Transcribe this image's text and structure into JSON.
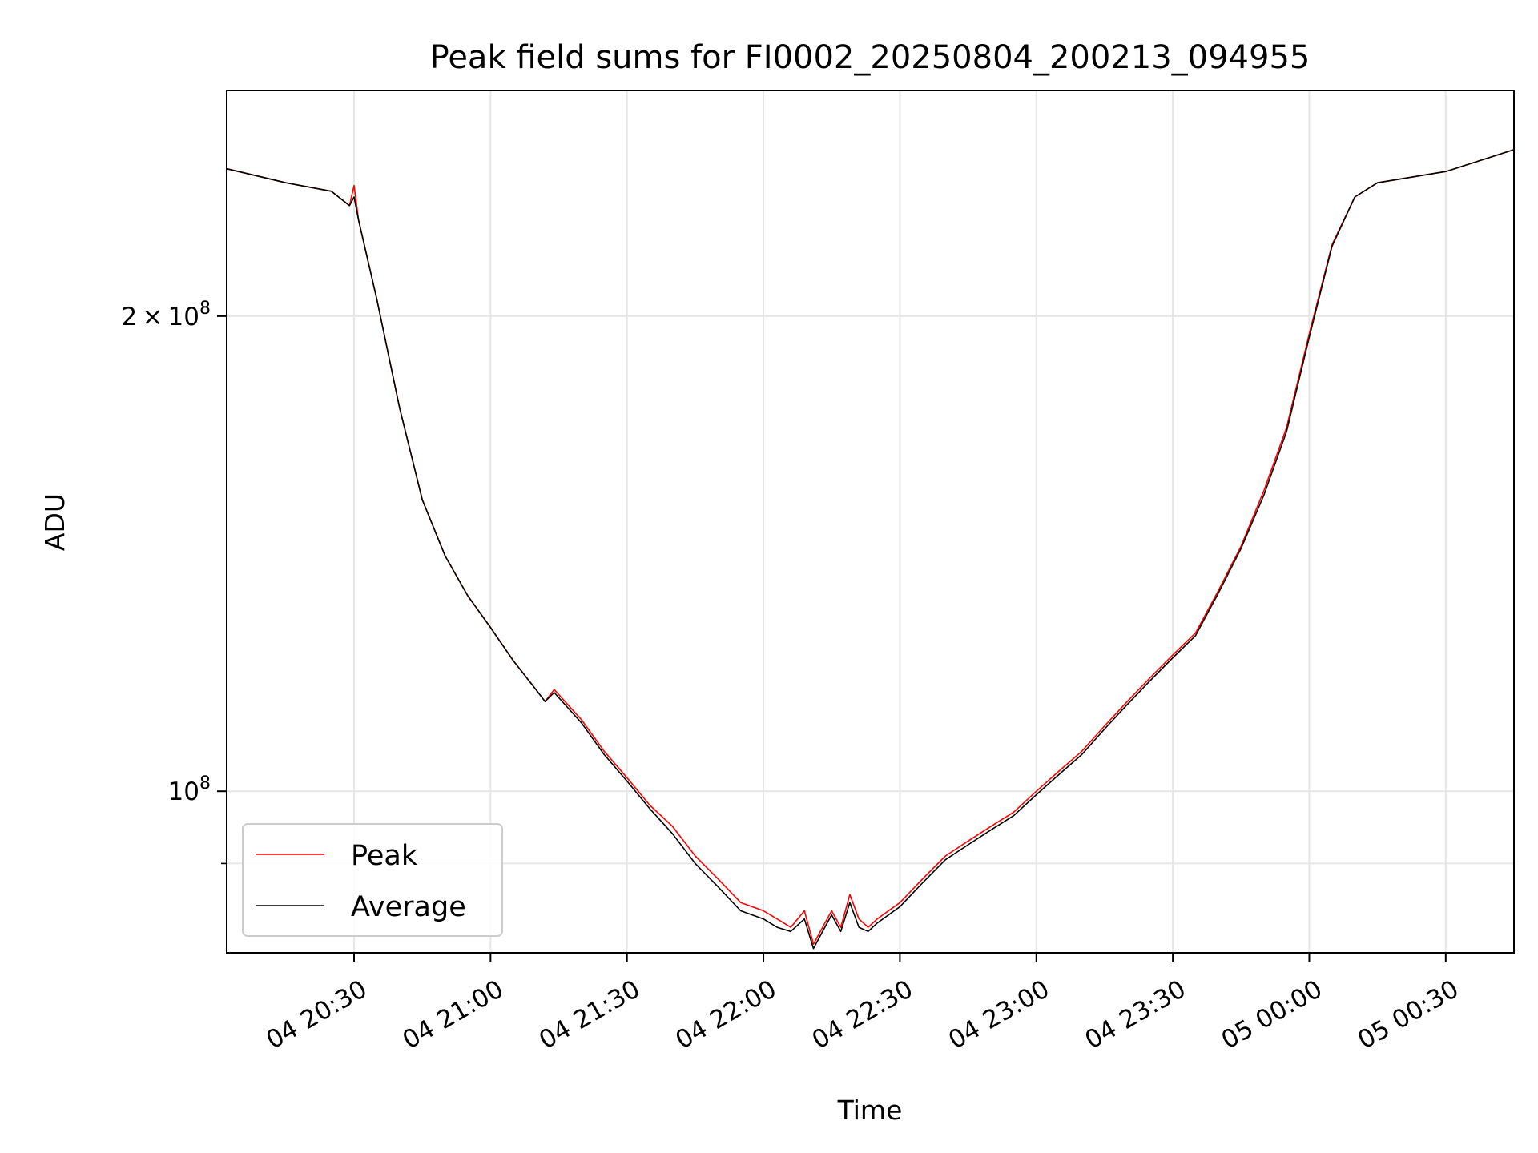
{
  "chart_data": {
    "type": "line",
    "title": "Peak field sums for FI0002_20250804_200213_094955",
    "xlabel": "Time",
    "ylabel": "ADU",
    "yscale": "log",
    "grid": true,
    "legend_placement": "lower-left",
    "xlim": [
      "2025-08-04 20:02",
      "2025-08-05 00:45"
    ],
    "ylim": [
      79000000,
      278000000
    ],
    "x_ticks": [
      "04 20:30",
      "04 21:00",
      "04 21:30",
      "04 22:00",
      "04 22:30",
      "04 23:00",
      "04 23:30",
      "05 00:00",
      "05 00:30"
    ],
    "y_ticks": [
      {
        "value": 200000000,
        "label": "2×10^8",
        "mantissa": "2 × 10",
        "exponent": "8"
      },
      {
        "value": 100000000,
        "label": "10^8",
        "mantissa": "10",
        "exponent": "8"
      }
    ],
    "y_minor_ticks": [
      90000000
    ],
    "series": [
      {
        "name": "Peak",
        "color": "#ff0000",
        "x": [
          "2025-08-04 20:02",
          "2025-08-04 20:15",
          "2025-08-04 20:25",
          "2025-08-04 20:29",
          "2025-08-04 20:30",
          "2025-08-04 20:31",
          "2025-08-04 20:35",
          "2025-08-04 20:40",
          "2025-08-04 20:45",
          "2025-08-04 20:50",
          "2025-08-04 20:55",
          "2025-08-04 21:00",
          "2025-08-04 21:05",
          "2025-08-04 21:10",
          "2025-08-04 21:12",
          "2025-08-04 21:14",
          "2025-08-04 21:20",
          "2025-08-04 21:25",
          "2025-08-04 21:30",
          "2025-08-04 21:35",
          "2025-08-04 21:40",
          "2025-08-04 21:45",
          "2025-08-04 21:50",
          "2025-08-04 21:55",
          "2025-08-04 22:00",
          "2025-08-04 22:03",
          "2025-08-04 22:06",
          "2025-08-04 22:09",
          "2025-08-04 22:11",
          "2025-08-04 22:13",
          "2025-08-04 22:15",
          "2025-08-04 22:17",
          "2025-08-04 22:19",
          "2025-08-04 22:21",
          "2025-08-04 22:23",
          "2025-08-04 22:25",
          "2025-08-04 22:30",
          "2025-08-04 22:35",
          "2025-08-04 22:40",
          "2025-08-04 22:45",
          "2025-08-04 22:50",
          "2025-08-04 22:55",
          "2025-08-04 23:00",
          "2025-08-04 23:05",
          "2025-08-04 23:10",
          "2025-08-04 23:15",
          "2025-08-04 23:20",
          "2025-08-04 23:25",
          "2025-08-04 23:30",
          "2025-08-04 23:35",
          "2025-08-04 23:40",
          "2025-08-04 23:45",
          "2025-08-04 23:50",
          "2025-08-04 23:55",
          "2025-08-05 00:00",
          "2025-08-05 00:05",
          "2025-08-05 00:10",
          "2025-08-05 00:15",
          "2025-08-05 00:30",
          "2025-08-05 00:45"
        ],
        "values": [
          248000000,
          243000000,
          240000000,
          235000000,
          242000000,
          230000000,
          205000000,
          175000000,
          153000000,
          141000000,
          133000000,
          127000000,
          121000000,
          116000000,
          114000000,
          116000000,
          111000000,
          106000000,
          102000000,
          98000000,
          95000000,
          91000000,
          88000000,
          85000000,
          84000000,
          83000000,
          82000000,
          84000000,
          80000000,
          82000000,
          84000000,
          82000000,
          86000000,
          83000000,
          82000000,
          83000000,
          85000000,
          88000000,
          91000000,
          93000000,
          95000000,
          97000000,
          100000000,
          103000000,
          106000000,
          110000000,
          114000000,
          118000000,
          122000000,
          126000000,
          134000000,
          143000000,
          155000000,
          170000000,
          195000000,
          222000000,
          238000000,
          243000000,
          247000000,
          255000000
        ]
      },
      {
        "name": "Average",
        "color": "#000000",
        "x": [
          "2025-08-04 20:02",
          "2025-08-04 20:15",
          "2025-08-04 20:25",
          "2025-08-04 20:29",
          "2025-08-04 20:30",
          "2025-08-04 20:31",
          "2025-08-04 20:35",
          "2025-08-04 20:40",
          "2025-08-04 20:45",
          "2025-08-04 20:50",
          "2025-08-04 20:55",
          "2025-08-04 21:00",
          "2025-08-04 21:05",
          "2025-08-04 21:10",
          "2025-08-04 21:12",
          "2025-08-04 21:14",
          "2025-08-04 21:20",
          "2025-08-04 21:25",
          "2025-08-04 21:30",
          "2025-08-04 21:35",
          "2025-08-04 21:40",
          "2025-08-04 21:45",
          "2025-08-04 21:50",
          "2025-08-04 21:55",
          "2025-08-04 22:00",
          "2025-08-04 22:03",
          "2025-08-04 22:06",
          "2025-08-04 22:09",
          "2025-08-04 22:11",
          "2025-08-04 22:13",
          "2025-08-04 22:15",
          "2025-08-04 22:17",
          "2025-08-04 22:19",
          "2025-08-04 22:21",
          "2025-08-04 22:23",
          "2025-08-04 22:25",
          "2025-08-04 22:30",
          "2025-08-04 22:35",
          "2025-08-04 22:40",
          "2025-08-04 22:45",
          "2025-08-04 22:50",
          "2025-08-04 22:55",
          "2025-08-04 23:00",
          "2025-08-04 23:05",
          "2025-08-04 23:10",
          "2025-08-04 23:15",
          "2025-08-04 23:20",
          "2025-08-04 23:25",
          "2025-08-04 23:30",
          "2025-08-04 23:35",
          "2025-08-04 23:40",
          "2025-08-04 23:45",
          "2025-08-04 23:50",
          "2025-08-04 23:55",
          "2025-08-05 00:00",
          "2025-08-05 00:05",
          "2025-08-05 00:10",
          "2025-08-05 00:15",
          "2025-08-05 00:30",
          "2025-08-05 00:45"
        ],
        "values": [
          248000000,
          243000000,
          240000000,
          235000000,
          238000000,
          230000000,
          205000000,
          175000000,
          153000000,
          141000000,
          133000000,
          127000000,
          121000000,
          116000000,
          114000000,
          115500000,
          110500000,
          105500000,
          101500000,
          97500000,
          94000000,
          90000000,
          87000000,
          84000000,
          83000000,
          82000000,
          81500000,
          83000000,
          79500000,
          81500000,
          83500000,
          81500000,
          85000000,
          82000000,
          81500000,
          82500000,
          84500000,
          87500000,
          90500000,
          92500000,
          94500000,
          96500000,
          99500000,
          102500000,
          105500000,
          109500000,
          113500000,
          117500000,
          121500000,
          125500000,
          133500000,
          142500000,
          154000000,
          169000000,
          194000000,
          221500000,
          238000000,
          243000000,
          247000000,
          255000000
        ]
      }
    ]
  }
}
